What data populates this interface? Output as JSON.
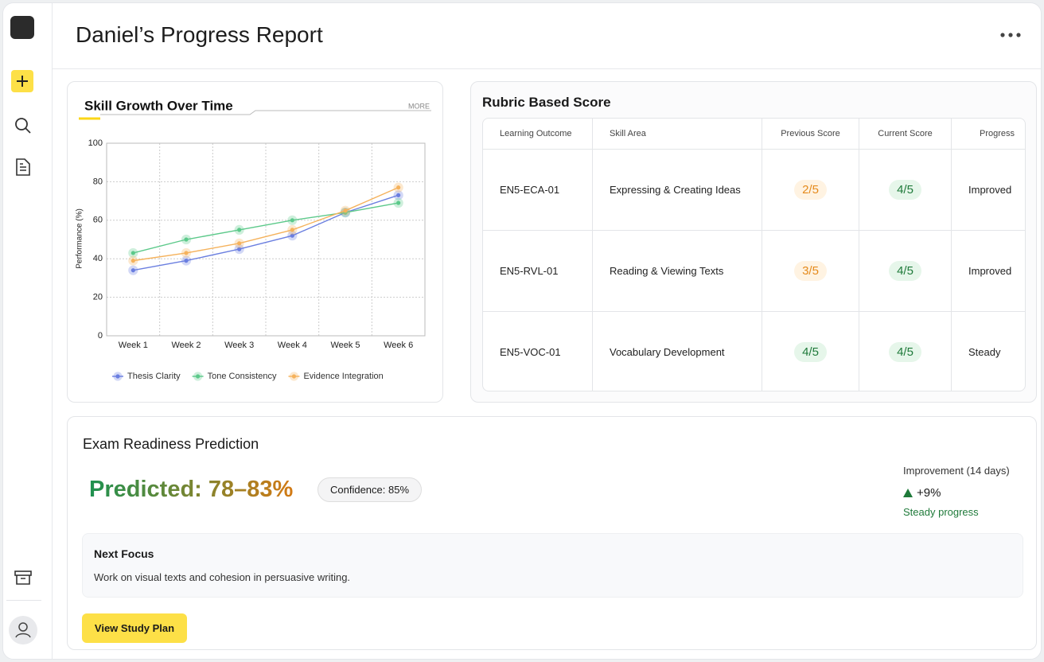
{
  "header": {
    "title": "Daniel’s Progress Report"
  },
  "chart_data": {
    "type": "line",
    "title": "Skill Growth Over Time",
    "more": "MORE",
    "y_label": "Performance (%)",
    "categories": [
      "Week 1",
      "Week 2",
      "Week 3",
      "Week 4",
      "Week 5",
      "Week 6"
    ],
    "series": [
      {
        "name": "Thesis Clarity",
        "color": "#6b7fe0",
        "values": [
          34,
          39,
          45,
          52,
          64,
          73
        ]
      },
      {
        "name": "Tone Consistency",
        "color": "#5cc98a",
        "values": [
          43,
          50,
          55,
          60,
          64,
          69
        ]
      },
      {
        "name": "Evidence Integration",
        "color": "#f5b25c",
        "values": [
          39,
          43,
          48,
          55,
          65,
          77
        ]
      }
    ],
    "ylim": [
      0,
      100
    ],
    "yticks": [
      0,
      20,
      40,
      60,
      80,
      100
    ],
    "grid": true
  },
  "rubric": {
    "title": "Rubric Based Score",
    "headers": [
      "Learning Outcome",
      "Skill Area",
      "Previous Score",
      "Current Score",
      "Progress"
    ],
    "rows": [
      [
        "EN5-ECA-01",
        "Expressing & Creating Ideas",
        "2/5",
        "4/5",
        "Improved"
      ],
      [
        "EN5-RVL-01",
        "Reading & Viewing Texts",
        "3/5",
        "4/5",
        "Improved"
      ],
      [
        "EN5-VOC-01",
        "Vocabulary Development",
        "4/5",
        "4/5",
        "Steady"
      ]
    ]
  },
  "exam": {
    "title": "Exam Readiness Prediction",
    "prediction": "Predicted: 78–83%",
    "confidence": "Confidence: 85%",
    "improvement_label": "Improvement (14 days)",
    "improvement_value": "+9%",
    "improvement_note": "Steady progress",
    "next_focus_title": "Next Focus",
    "next_focus_text": "Work on visual texts and cohesion in persuasive writing.",
    "button": "View Study Plan"
  }
}
